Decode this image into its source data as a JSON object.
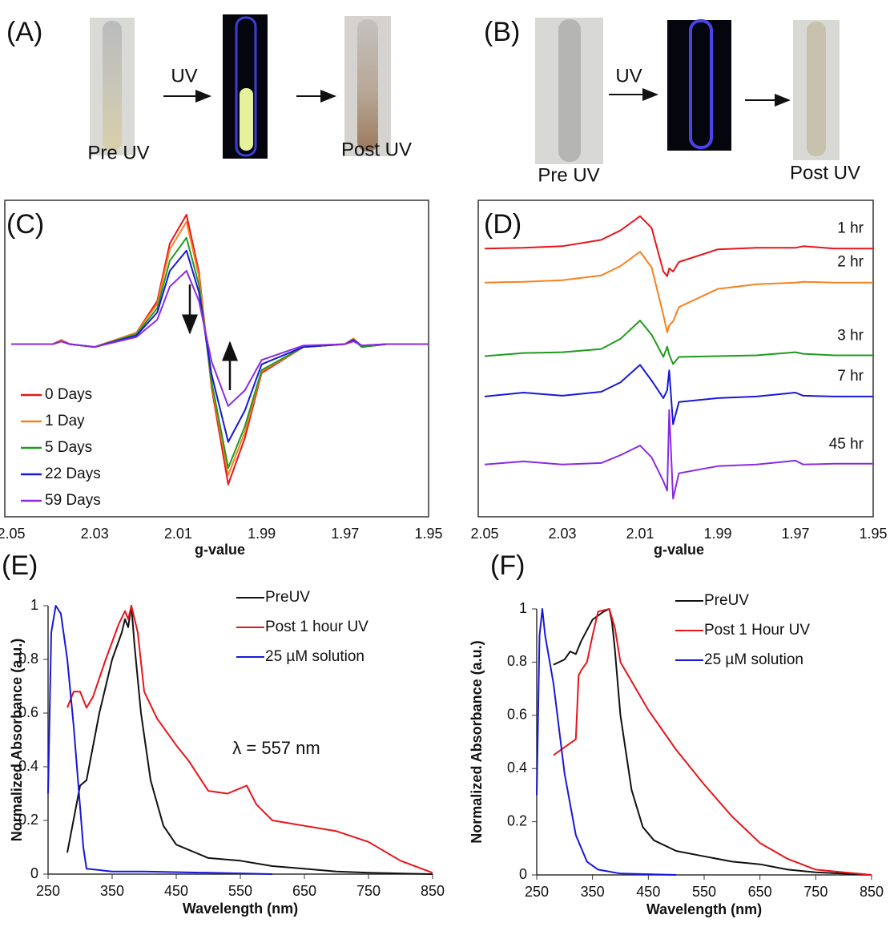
{
  "photos": [
    {
      "label": "(A)",
      "arrow_label": "UV",
      "before": "Pre UV",
      "after": "Post UV"
    },
    {
      "label": "(B)",
      "arrow_label": "UV",
      "before": "Pre UV",
      "after": "Post UV"
    }
  ],
  "chart_data": [
    {
      "type": "line",
      "label": "(C)",
      "xlabel": "g-value",
      "legend": "lower left",
      "xlim": [
        2.05,
        1.95
      ],
      "ylim": [
        -1.2,
        1.0
      ],
      "xticks": [
        2.05,
        2.03,
        2.01,
        1.99,
        1.97,
        1.95
      ],
      "x": [
        2.05,
        2.04,
        2.038,
        2.036,
        2.03,
        2.02,
        2.015,
        2.012,
        2.008,
        2.005,
        2.002,
        1.998,
        1.994,
        1.99,
        1.98,
        1.97,
        1.968,
        1.966,
        1.96,
        1.95
      ],
      "series": [
        {
          "name": "0 Days",
          "color": "#e8141a",
          "values": [
            0,
            0,
            0.03,
            0,
            -0.02,
            0.08,
            0.3,
            0.7,
            0.9,
            0.5,
            -0.3,
            -0.975,
            -0.65,
            -0.2,
            -0.02,
            0,
            0.04,
            -0.02,
            0,
            0
          ]
        },
        {
          "name": "1 Day",
          "color": "#f58220",
          "values": [
            0,
            0,
            0.03,
            0,
            -0.02,
            0.08,
            0.28,
            0.66,
            0.85,
            0.47,
            -0.28,
            -0.91,
            -0.61,
            -0.19,
            -0.02,
            0,
            0.04,
            -0.02,
            0,
            0
          ]
        },
        {
          "name": "5 Days",
          "color": "#1e9b1e",
          "values": [
            0,
            0,
            0.02,
            0,
            -0.02,
            0.07,
            0.25,
            0.58,
            0.74,
            0.41,
            -0.26,
            -0.86,
            -0.57,
            -0.18,
            -0.02,
            0,
            0.03,
            -0.02,
            0,
            0
          ]
        },
        {
          "name": "22 Days",
          "color": "#1818d8",
          "values": [
            0,
            0,
            0.02,
            0,
            -0.02,
            0.06,
            0.22,
            0.51,
            0.65,
            0.36,
            -0.21,
            -0.68,
            -0.46,
            -0.14,
            -0.02,
            0,
            0.03,
            -0.01,
            0,
            0
          ]
        },
        {
          "name": "59 Days",
          "color": "#8a2be2",
          "values": [
            0,
            0,
            0.02,
            0,
            -0.02,
            0.05,
            0.17,
            0.4,
            0.51,
            0.3,
            -0.12,
            -0.43,
            -0.32,
            -0.11,
            -0.01,
            0,
            0.02,
            -0.01,
            0,
            0
          ]
        }
      ]
    },
    {
      "type": "line",
      "label": "(D)",
      "xlabel": "g-value",
      "xlim": [
        2.05,
        1.95
      ],
      "ylim": [
        0,
        4
      ],
      "xticks": [
        2.05,
        2.03,
        2.01,
        1.99,
        1.97,
        1.95
      ],
      "x": [
        2.05,
        2.04,
        2.03,
        2.02,
        2.015,
        2.01,
        2.007,
        2.004,
        2.003,
        2.0025,
        2.0015,
        2.0,
        1.99,
        1.98,
        1.97,
        1.968,
        1.96,
        1.95
      ],
      "series": [
        {
          "name": "1 hr",
          "color": "#e8141a",
          "values": [
            3.39,
            3.4,
            3.42,
            3.5,
            3.62,
            3.8,
            3.65,
            3.1,
            3.04,
            3.14,
            3.1,
            3.22,
            3.38,
            3.4,
            3.4,
            3.42,
            3.39,
            3.39
          ]
        },
        {
          "name": "2 hr",
          "color": "#f58220",
          "values": [
            2.96,
            2.97,
            2.99,
            3.05,
            3.17,
            3.35,
            3.15,
            2.55,
            2.33,
            2.42,
            2.47,
            2.65,
            2.88,
            2.94,
            2.96,
            2.97,
            2.96,
            2.96
          ]
        },
        {
          "name": "3 hr",
          "color": "#1e9b1e",
          "values": [
            2.03,
            2.07,
            2.08,
            2.12,
            2.25,
            2.48,
            2.3,
            2.02,
            2.15,
            2.05,
            1.93,
            2.02,
            2.03,
            2.04,
            2.08,
            2.06,
            2.04,
            2.04
          ]
        },
        {
          "name": "7 hr",
          "color": "#1818d8",
          "values": [
            1.52,
            1.57,
            1.53,
            1.58,
            1.7,
            1.92,
            1.72,
            1.5,
            1.6,
            1.85,
            1.17,
            1.45,
            1.5,
            1.52,
            1.57,
            1.53,
            1.52,
            1.52
          ]
        },
        {
          "name": "45 hr",
          "color": "#8a2be2",
          "values": [
            0.66,
            0.7,
            0.66,
            0.68,
            0.78,
            0.9,
            0.75,
            0.45,
            0.33,
            1.35,
            0.23,
            0.55,
            0.64,
            0.66,
            0.71,
            0.66,
            0.67,
            0.67
          ]
        }
      ]
    },
    {
      "type": "line",
      "label": "(E)",
      "xlabel": "Wavelength (nm)",
      "ylabel": "Normalized Absorbance (a.u.)",
      "legend": "upper right",
      "annotation": "λ = 557 nm",
      "xlim": [
        250,
        850
      ],
      "ylim": [
        0,
        1
      ],
      "xticks": [
        250,
        350,
        450,
        550,
        650,
        750,
        850
      ],
      "yticks": [
        0,
        0.2,
        0.4,
        0.6,
        0.8,
        1
      ],
      "series": [
        {
          "name": "PreUV",
          "color": "#111111",
          "x": [
            280,
            300,
            310,
            330,
            350,
            365,
            370,
            375,
            380,
            385,
            395,
            410,
            430,
            450,
            500,
            550,
            600,
            650,
            700,
            750,
            850
          ],
          "values": [
            0.08,
            0.33,
            0.35,
            0.6,
            0.8,
            0.9,
            0.95,
            0.92,
            1.0,
            0.85,
            0.6,
            0.35,
            0.18,
            0.11,
            0.06,
            0.05,
            0.03,
            0.02,
            0.01,
            0.005,
            0
          ]
        },
        {
          "name": "Post 1 hour UV",
          "color": "#e8141a",
          "x": [
            280,
            290,
            300,
            310,
            320,
            340,
            360,
            370,
            375,
            380,
            390,
            400,
            420,
            450,
            470,
            500,
            530,
            550,
            560,
            575,
            600,
            650,
            700,
            750,
            800,
            850
          ],
          "values": [
            0.62,
            0.68,
            0.68,
            0.62,
            0.66,
            0.8,
            0.93,
            0.98,
            0.95,
            1.0,
            0.9,
            0.68,
            0.58,
            0.48,
            0.42,
            0.31,
            0.3,
            0.32,
            0.33,
            0.26,
            0.2,
            0.18,
            0.16,
            0.12,
            0.05,
            0.005
          ]
        },
        {
          "name": "25 µM solution",
          "color": "#1818d8",
          "x": [
            250,
            255,
            262,
            270,
            280,
            290,
            300,
            305,
            310,
            350,
            400,
            500,
            600
          ],
          "values": [
            0.3,
            0.9,
            1.0,
            0.97,
            0.8,
            0.55,
            0.25,
            0.1,
            0.02,
            0.01,
            0.01,
            0.005,
            0
          ]
        }
      ]
    },
    {
      "type": "line",
      "label": "(F)",
      "xlabel": "Wavelength (nm)",
      "ylabel": "Normalized  Absorbance (a.u.)",
      "legend": "upper right",
      "xlim": [
        250,
        850
      ],
      "ylim": [
        0,
        1
      ],
      "xticks": [
        250,
        350,
        450,
        550,
        650,
        750,
        850
      ],
      "yticks": [
        0,
        0.2,
        0.4,
        0.6,
        0.8,
        1
      ],
      "series": [
        {
          "name": "PreUV",
          "color": "#111111",
          "x": [
            280,
            300,
            310,
            320,
            330,
            350,
            370,
            380,
            385,
            390,
            400,
            420,
            440,
            460,
            500,
            550,
            600,
            650,
            700,
            750,
            850
          ],
          "values": [
            0.79,
            0.81,
            0.84,
            0.83,
            0.88,
            0.96,
            0.99,
            1.0,
            0.95,
            0.85,
            0.6,
            0.32,
            0.18,
            0.13,
            0.09,
            0.07,
            0.05,
            0.04,
            0.02,
            0.01,
            0
          ]
        },
        {
          "name": "Post 1 Hour UV",
          "color": "#e8141a",
          "x": [
            280,
            300,
            320,
            325,
            330,
            340,
            350,
            360,
            380,
            390,
            400,
            450,
            500,
            550,
            600,
            650,
            700,
            750,
            800,
            850
          ],
          "values": [
            0.45,
            0.48,
            0.51,
            0.75,
            0.77,
            0.8,
            0.9,
            0.99,
            1.0,
            0.93,
            0.8,
            0.62,
            0.47,
            0.34,
            0.22,
            0.12,
            0.06,
            0.02,
            0.01,
            0
          ]
        },
        {
          "name": "25 µM solution",
          "color": "#1818d8",
          "x": [
            250,
            255,
            260,
            265,
            280,
            300,
            320,
            340,
            360,
            400,
            500
          ],
          "values": [
            0.3,
            0.9,
            1.0,
            0.9,
            0.72,
            0.38,
            0.15,
            0.05,
            0.02,
            0.005,
            0
          ]
        }
      ]
    }
  ]
}
